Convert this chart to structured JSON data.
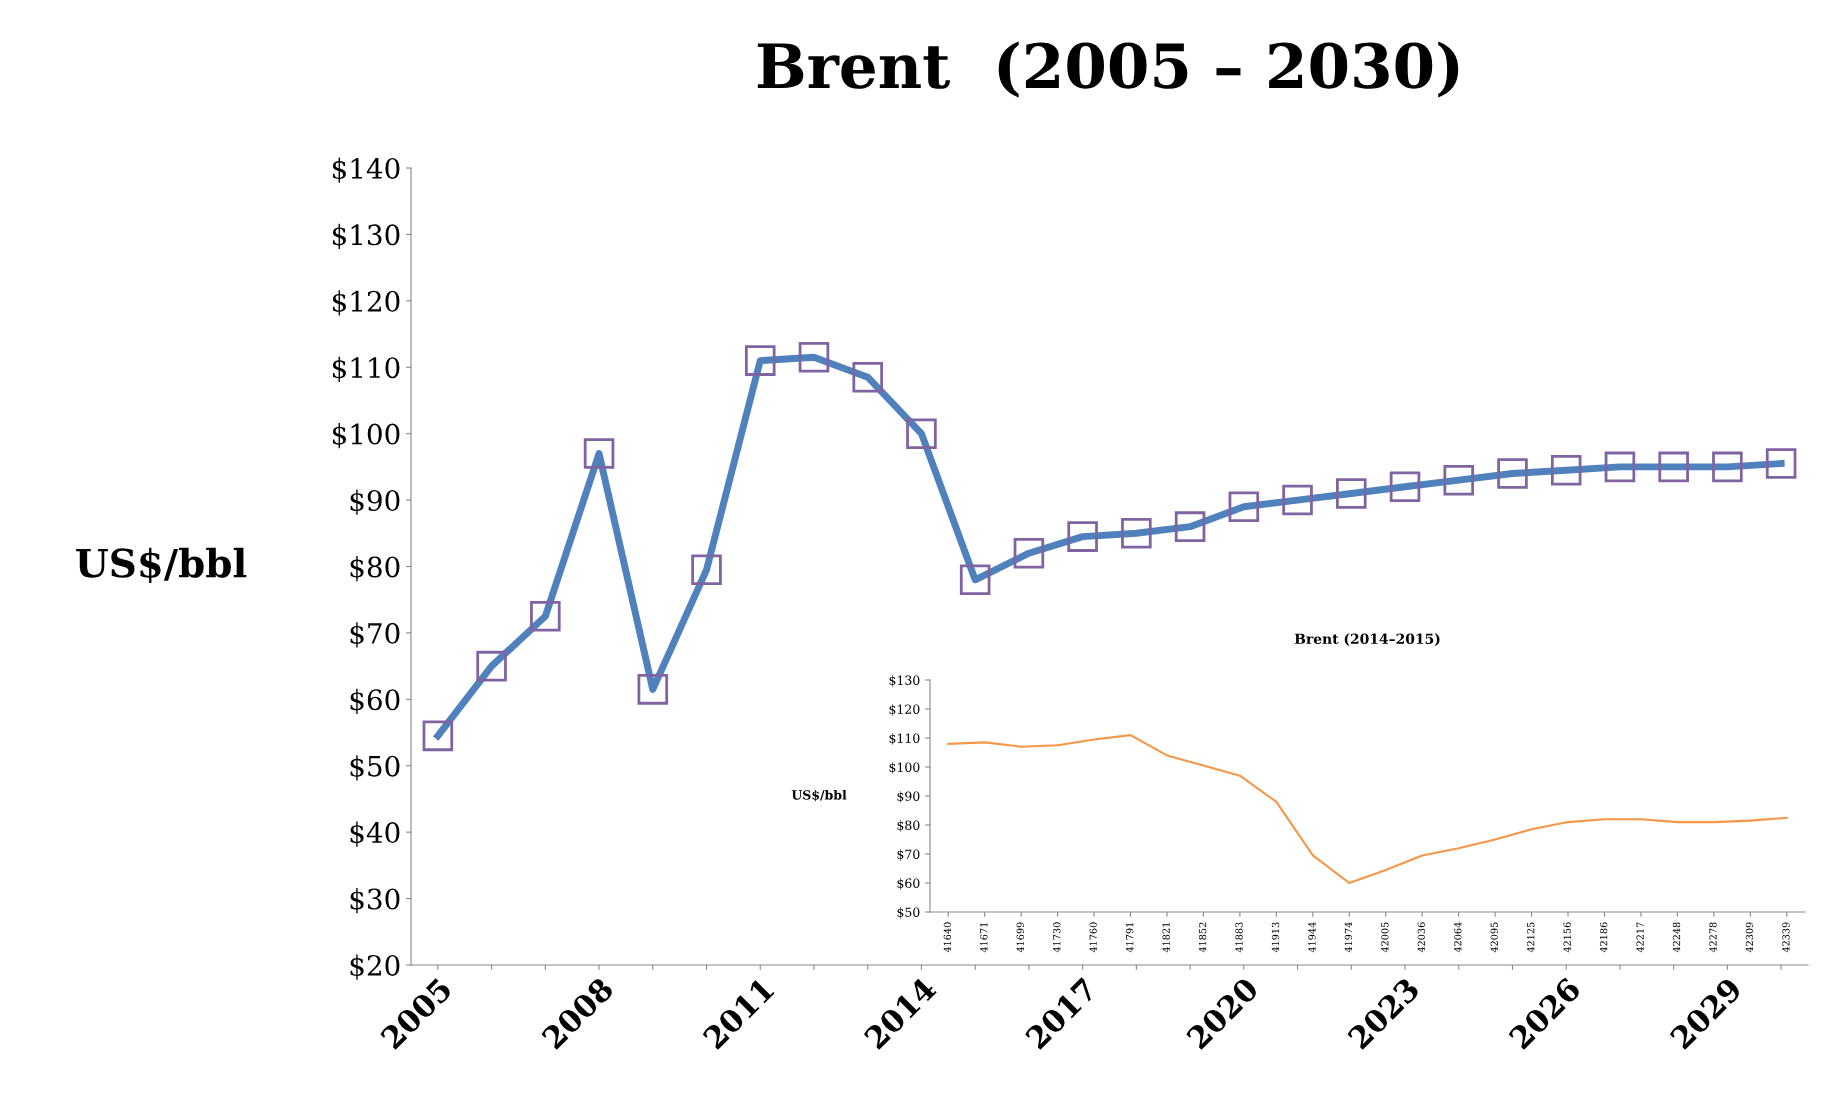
{
  "chart_data": [
    {
      "type": "line",
      "title": "Brent  (2005 – 2030)",
      "ylabel": "US$/bbl",
      "categories": [
        "2005",
        null,
        null,
        "2008",
        null,
        null,
        "2011",
        null,
        null,
        "2014",
        null,
        null,
        "2017",
        null,
        null,
        "2020",
        null,
        null,
        "2023",
        null,
        null,
        "2026",
        null,
        null,
        "2029",
        null
      ],
      "series": [
        {
          "color": "#4f81bd",
          "values": [
            54.5,
            65,
            72.5,
            97,
            61.5,
            79.5,
            111,
            111.5,
            108.5,
            100,
            78,
            82,
            84.5,
            85,
            86,
            89,
            90,
            91,
            92,
            93,
            94,
            94.5,
            95,
            95,
            95,
            95.5
          ]
        }
      ],
      "ylim": [
        20,
        140
      ],
      "yticks": [
        {
          "value": 20,
          "label": "$20"
        },
        {
          "value": 30,
          "label": "$30"
        },
        {
          "value": 40,
          "label": "$40"
        },
        {
          "value": 50,
          "label": "$50"
        },
        {
          "value": 60,
          "label": "$60"
        },
        {
          "value": 70,
          "label": "$70"
        },
        {
          "value": 80,
          "label": "$80"
        },
        {
          "value": 90,
          "label": "$90"
        },
        {
          "value": 100,
          "label": "$100"
        },
        {
          "value": 110,
          "label": "$110"
        },
        {
          "value": 120,
          "label": "$120"
        },
        {
          "value": 130,
          "label": "$130"
        },
        {
          "value": 140,
          "label": "$140"
        }
      ],
      "marker": "square",
      "grid": false
    },
    {
      "type": "line",
      "title": "Brent (2014–2015)",
      "ylabel": "US$/bbl",
      "categories": [
        "41640",
        "41671",
        "41699",
        "41730",
        "41760",
        "41791",
        "41821",
        "41852",
        "41883",
        "41913",
        "41944",
        "41974",
        "42005",
        "42036",
        "42064",
        "42095",
        "42125",
        "42156",
        "42186",
        "42217",
        "42248",
        "42278",
        "42309",
        "42339"
      ],
      "series": [
        {
          "color": "#f79646",
          "values": [
            108,
            108.5,
            107,
            107.5,
            109.5,
            111,
            104,
            100.5,
            97,
            88,
            69.5,
            60,
            64.5,
            69.5,
            72,
            75,
            78.5,
            81,
            82,
            82,
            81,
            81,
            81.5,
            82.5
          ]
        }
      ],
      "ylim": [
        50,
        130
      ],
      "yticks": [
        {
          "value": 50,
          "label": "$50"
        },
        {
          "value": 60,
          "label": "$60"
        },
        {
          "value": 70,
          "label": "$70"
        },
        {
          "value": 80,
          "label": "$80"
        },
        {
          "value": 90,
          "label": "$90"
        },
        {
          "value": 100,
          "label": "$100"
        },
        {
          "value": 110,
          "label": "$110"
        },
        {
          "value": 120,
          "label": "$120"
        },
        {
          "value": 130,
          "label": "$130"
        }
      ],
      "marker": "none",
      "grid": false
    }
  ]
}
